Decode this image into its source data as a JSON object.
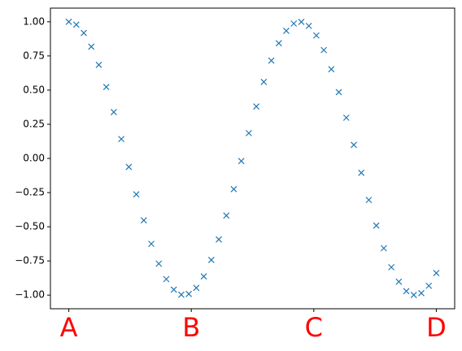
{
  "chart_data": {
    "type": "scatter",
    "marker": "x",
    "color": "#1f77b4",
    "x": [
      0,
      0.204,
      0.408,
      0.612,
      0.816,
      1.02,
      1.224,
      1.429,
      1.633,
      1.837,
      2.041,
      2.245,
      2.449,
      2.653,
      2.857,
      3.061,
      3.265,
      3.469,
      3.673,
      3.878,
      4.082,
      4.286,
      4.49,
      4.694,
      4.898,
      5.102,
      5.306,
      5.51,
      5.714,
      5.918,
      6.122,
      6.327,
      6.531,
      6.735,
      6.939,
      7.143,
      7.347,
      7.551,
      7.755,
      7.959,
      8.163,
      8.367,
      8.571,
      8.776,
      8.98,
      9.184,
      9.388,
      9.592,
      9.796,
      10
    ],
    "values": [
      1,
      0.979,
      0.918,
      0.818,
      0.685,
      0.523,
      0.339,
      0.142,
      -0.062,
      -0.263,
      -0.453,
      -0.625,
      -0.77,
      -0.883,
      -0.96,
      -0.997,
      -0.992,
      -0.947,
      -0.863,
      -0.743,
      -0.593,
      -0.418,
      -0.225,
      -0.019,
      0.185,
      0.38,
      0.56,
      0.716,
      0.843,
      0.934,
      0.987,
      0.999,
      0.97,
      0.9,
      0.793,
      0.653,
      0.485,
      0.298,
      0.099,
      -0.105,
      -0.304,
      -0.491,
      -0.657,
      -0.796,
      -0.902,
      -0.971,
      -0.999,
      -0.986,
      -0.932,
      -0.839
    ],
    "xlim": [
      -0.5,
      10.5
    ],
    "ylim": [
      -1.1,
      1.1
    ],
    "xticks": [
      {
        "value": 0,
        "label": "A"
      },
      {
        "value": 3.333,
        "label": "B"
      },
      {
        "value": 6.667,
        "label": "C"
      },
      {
        "value": 10,
        "label": "D"
      }
    ],
    "yticks": [
      {
        "value": -1,
        "label": "−1.00"
      },
      {
        "value": -0.75,
        "label": "−0.75"
      },
      {
        "value": -0.5,
        "label": "−0.50"
      },
      {
        "value": -0.25,
        "label": "−0.25"
      },
      {
        "value": 0,
        "label": "0.00"
      },
      {
        "value": 0.25,
        "label": "0.25"
      },
      {
        "value": 0.5,
        "label": "0.50"
      },
      {
        "value": 0.75,
        "label": "0.75"
      },
      {
        "value": 1,
        "label": "1.00"
      }
    ],
    "grid": false
  }
}
